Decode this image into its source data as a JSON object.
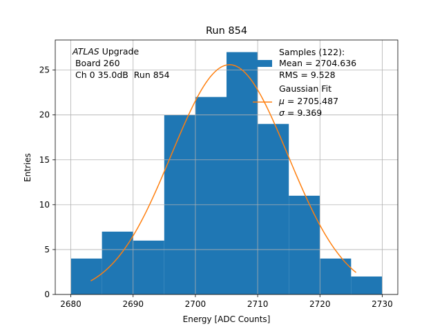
{
  "chart_data": {
    "type": "bar",
    "title": "Run 854",
    "xlabel": "Energy [ADC Counts]",
    "ylabel": "Entries",
    "xlim": [
      2677.5,
      2732.5
    ],
    "ylim": [
      0,
      28.35
    ],
    "xticks": [
      2680,
      2690,
      2700,
      2710,
      2720,
      2730
    ],
    "yticks": [
      0,
      5,
      10,
      15,
      20,
      25
    ],
    "grid": true,
    "bin_edges": [
      2680,
      2685,
      2690,
      2695,
      2700,
      2705,
      2710,
      2715,
      2720,
      2725,
      2730
    ],
    "values": [
      4,
      7,
      6,
      20,
      22,
      27,
      19,
      11,
      4,
      2
    ],
    "bar_color": "#1f77b4",
    "fit": {
      "type": "gaussian",
      "x_range": [
        2683.2,
        2725.8
      ],
      "mu": 2705.487,
      "sigma": 9.369,
      "peak": 25.6,
      "color": "#ff7f0e"
    },
    "annotation": {
      "line1_italic": "ATLAS",
      "line1_rest": " Upgrade",
      "line2": " Board 260",
      "line3": " Ch 0 35.0dB  Run 854"
    },
    "legend": {
      "placement": "top-right",
      "samples": [
        "Samples (122):",
        "Mean = 2704.636",
        "RMS = 9.528"
      ],
      "fit_title": "Gaussian Fit",
      "fit_mu_symbol": "μ",
      "fit_mu_value": " = 2705.487",
      "fit_sigma_symbol": "σ",
      "fit_sigma_value": " = 9.369"
    }
  }
}
